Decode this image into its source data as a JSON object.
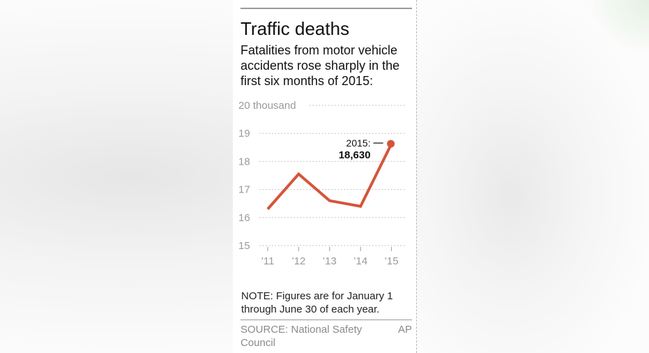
{
  "graphic": {
    "title": "Traffic deaths",
    "subtitle": "Fatalities from motor vehicle accidents rose sharply in the first six months of 2015:",
    "note": "NOTE: Figures are for January 1 through June 30 of each year.",
    "source": "SOURCE: National Safety Council",
    "credit": "AP"
  },
  "chart_data": {
    "type": "line",
    "categories": [
      "’11",
      "’12",
      "’13",
      "’14",
      "’15"
    ],
    "values": [
      16.3,
      17.55,
      16.6,
      16.4,
      18.63
    ],
    "ylim": [
      15,
      20
    ],
    "yticks": [
      15,
      16,
      17,
      18,
      19,
      20
    ],
    "ytick_labels": [
      "15",
      "16",
      "17",
      "18",
      "19",
      "20 thousand"
    ],
    "grid": true,
    "line_color": "#d4553a",
    "annotation": {
      "category": "’15",
      "label": "2015:",
      "value_text": "18,630"
    }
  }
}
